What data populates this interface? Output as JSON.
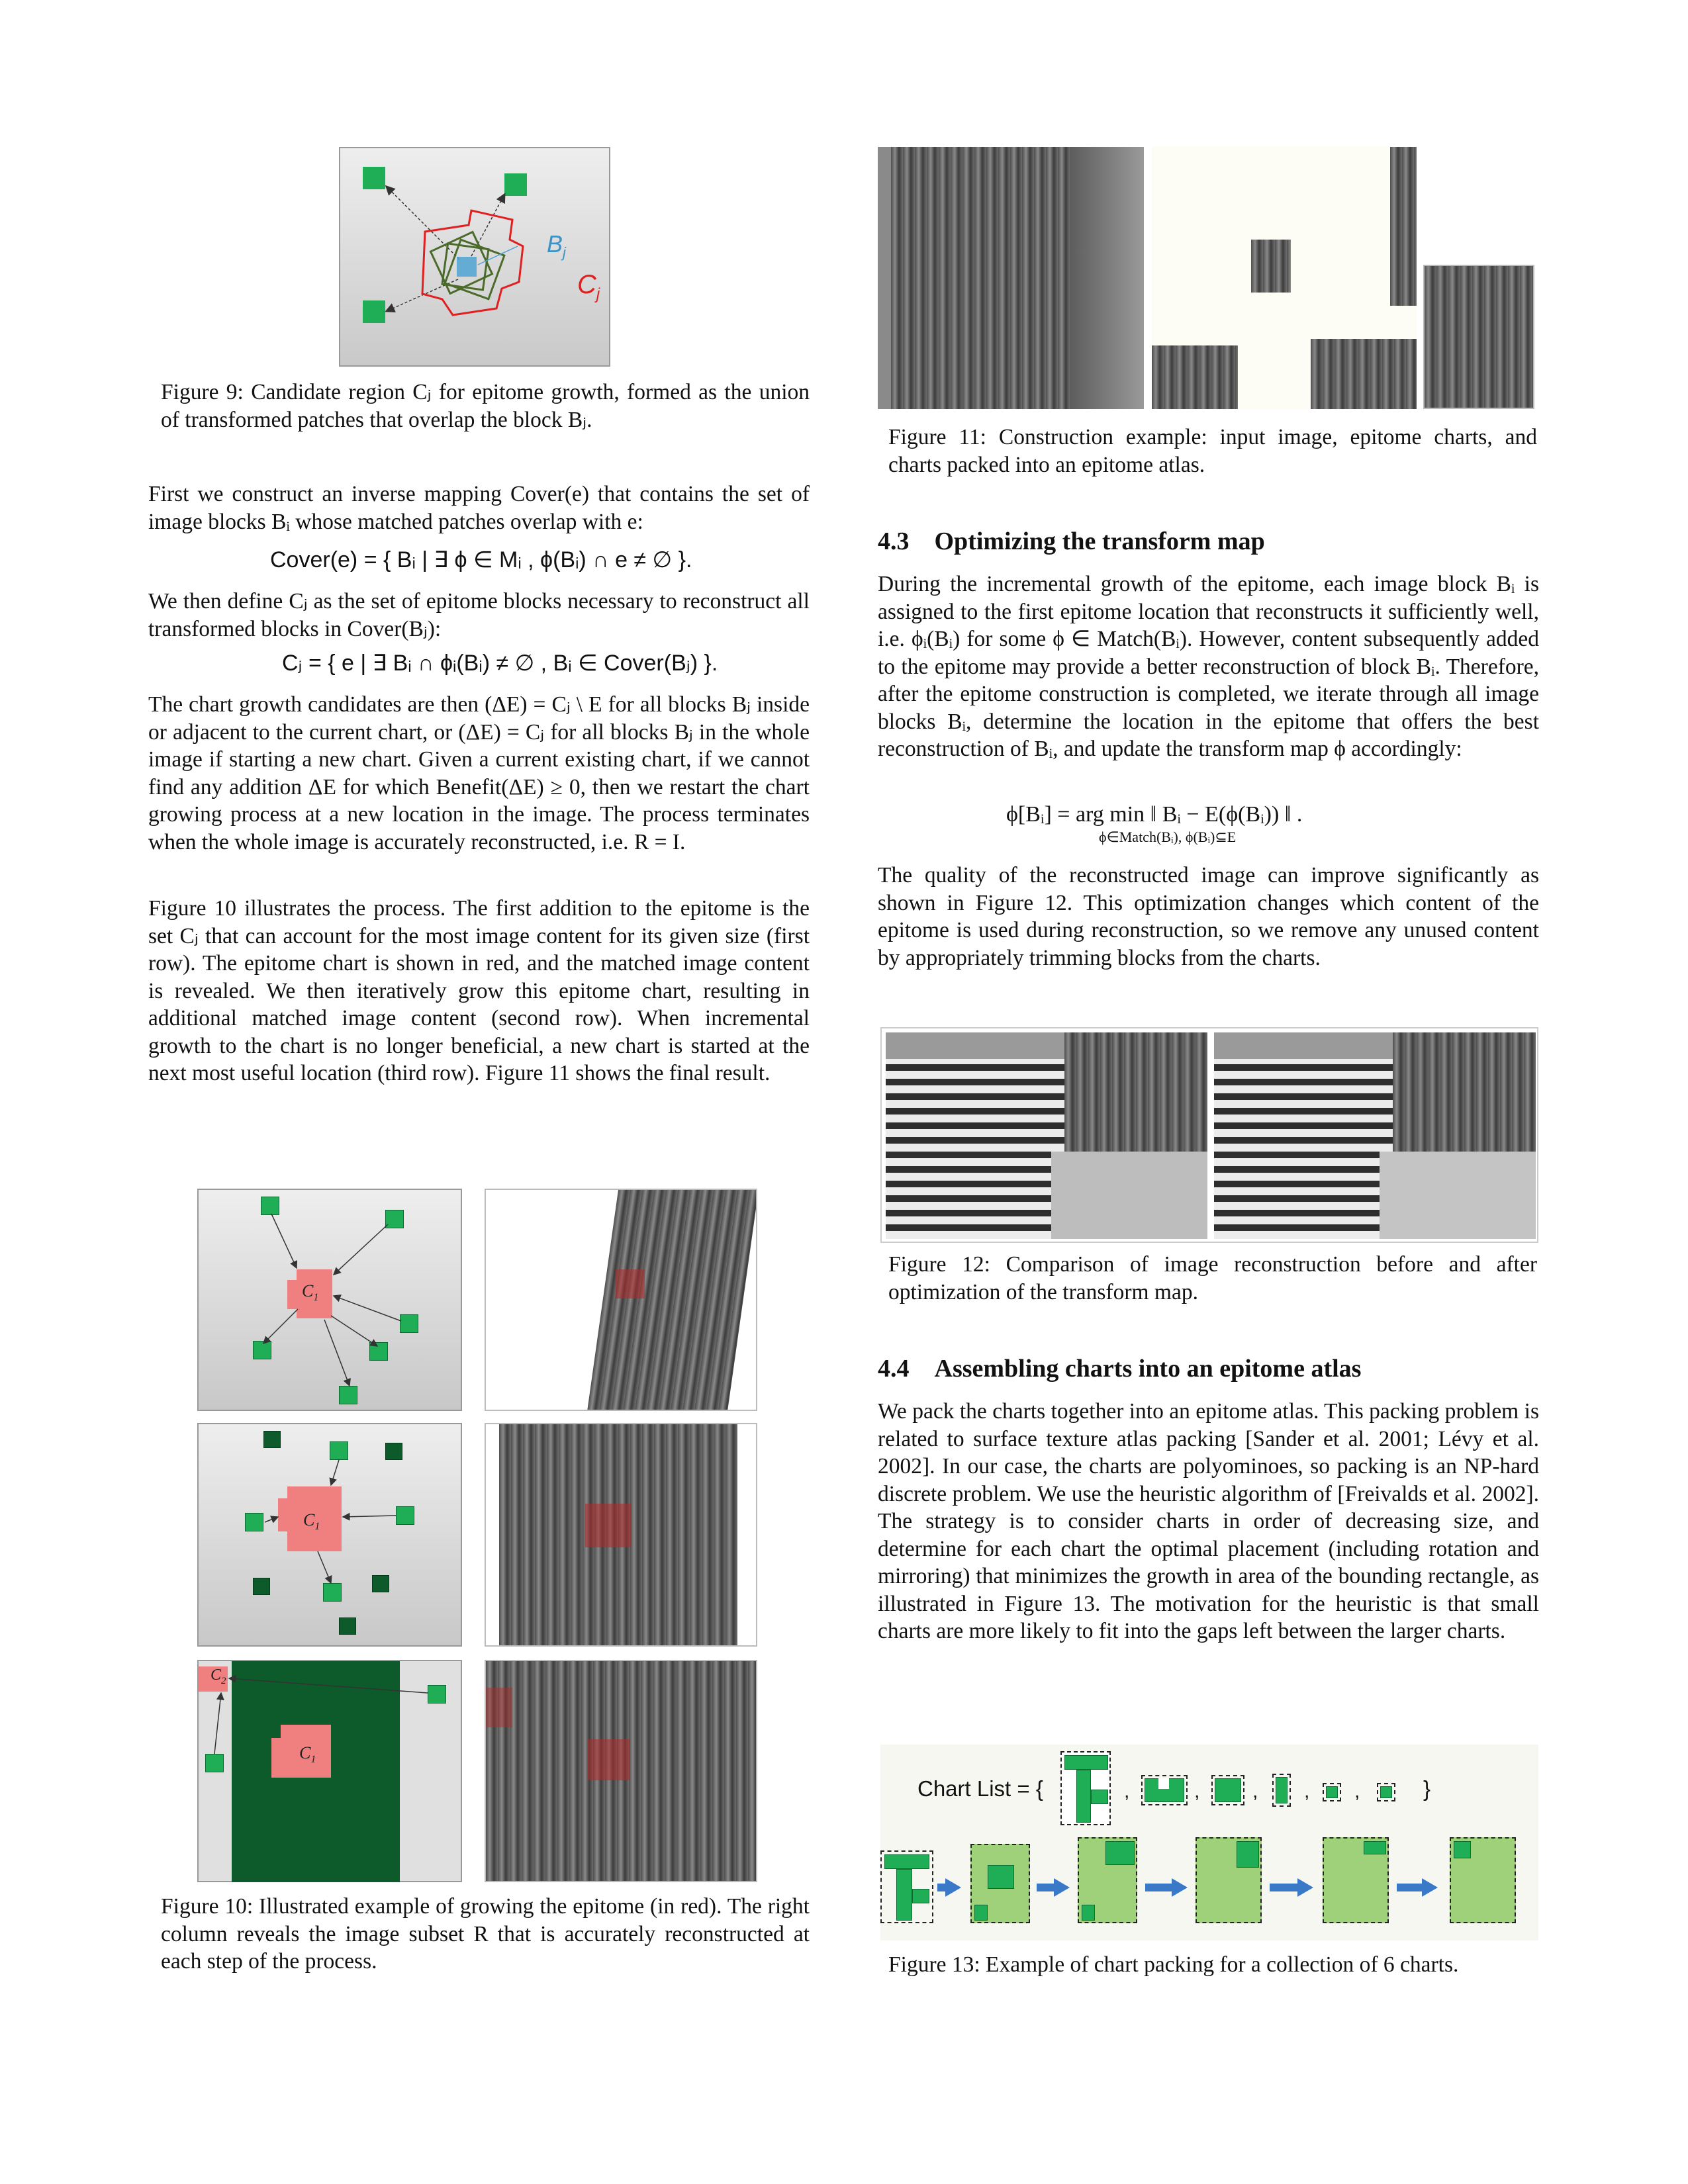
{
  "fig9": {
    "label_b": "B",
    "label_b_sub": "j",
    "label_c": "C",
    "label_c_sub": "j",
    "caption": "Figure 9: Candidate region Cⱼ for epitome growth, formed as the union of transformed patches that overlap the block Bⱼ."
  },
  "left_paragraphs": {
    "p1": "First we construct an inverse mapping Cover(e) that contains the set of image blocks Bᵢ whose matched patches overlap with e:",
    "eq1": "Cover(e) = { Bᵢ | ∃ ϕ ∈ Mᵢ , ϕ(Bᵢ) ∩ e ≠ ∅ }.",
    "p2": "We then define Cⱼ as the set of epitome blocks necessary to reconstruct all transformed blocks in Cover(Bⱼ):",
    "eq2": "Cⱼ = { e | ∃ Bᵢ ∩ ϕᵢ(Bᵢ) ≠ ∅ , Bᵢ ∈ Cover(Bⱼ) }.",
    "p3": "The chart growth candidates are then (ΔE) = Cⱼ \\ E for all blocks Bⱼ inside or adjacent to the current chart, or (ΔE) = Cⱼ for all blocks Bⱼ in the whole image if starting a new chart. Given a current existing chart, if we cannot find any addition ΔE for which Benefit(ΔE) ≥ 0, then we restart the chart growing process at a new location in the image. The process terminates when the whole image is accurately reconstructed, i.e. R = I.",
    "p4": "Figure 10 illustrates the process. The first addition to the epitome is the set Cⱼ that can account for the most image content for its given size (first row). The epitome chart is shown in red, and the matched image content is revealed. We then iteratively grow this epitome chart, resulting in additional matched image content (second row). When incremental growth to the chart is no longer beneficial, a new chart is started at the next most useful location (third row). Figure 11 shows the final result."
  },
  "fig10": {
    "c1": "C",
    "c1_sub": "1",
    "c2": "C",
    "c2_sub": "2",
    "caption": "Figure 10: Illustrated example of growing the epitome (in red). The right column reveals the image subset R that is accurately reconstructed at each step of the process."
  },
  "fig11": {
    "caption": "Figure 11: Construction example: input image, epitome charts, and charts packed into an epitome atlas."
  },
  "section43": {
    "heading": "4.3 Optimizing the transform map",
    "p1": "During the incremental growth of the epitome, each image block Bᵢ is assigned to the first epitome location that reconstructs it sufficiently well, i.e. ϕᵢ(Bᵢ) for some ϕ ∈ Match(Bᵢ). However, content subsequently added to the epitome may provide a better reconstruction of block Bᵢ. Therefore, after the epitome construction is completed, we iterate through all image blocks Bᵢ, determine the location in the epitome that offers the best reconstruction of Bᵢ, and update the transform map ϕ accordingly:",
    "eq": "ϕ[Bᵢ] = arg min ‖ Bᵢ − E(ϕ(Bᵢ)) ‖ .",
    "eq_sub": "ϕ∈Match(Bᵢ), ϕ(Bᵢ)⊆E",
    "p2": "The quality of the reconstructed image can improve significantly as shown in Figure 12. This optimization changes which content of the epitome is used during reconstruction, so we remove any unused content by appropriately trimming blocks from the charts."
  },
  "fig12": {
    "caption": "Figure 12: Comparison of image reconstruction before and after optimization of the transform map."
  },
  "section44": {
    "heading": "4.4 Assembling charts into an epitome atlas",
    "p1": "We pack the charts together into an epitome atlas. This packing problem is related to surface texture atlas packing [Sander et al. 2001; Lévy et al. 2002]. In our case, the charts are polyominoes, so packing is an NP-hard discrete problem. We use the heuristic algorithm of [Freivalds et al. 2002]. The strategy is to consider charts in order of decreasing size, and determine for each chart the optimal placement (including rotation and mirroring) that minimizes the growth in area of the bounding rectangle, as illustrated in Figure 13. The motivation for the heuristic is that small charts are more likely to fit into the gaps left between the larger charts."
  },
  "fig13": {
    "chart_list_label": "Chart List = {",
    "close_brace": "}",
    "comma": ",",
    "caption": "Figure 13: Example of chart packing for a collection of 6 charts."
  },
  "colors": {
    "epitome_red": "#f08080",
    "green": "#1fae55",
    "dark_green": "#0d5a2a",
    "arrow_blue": "#3a78c8"
  }
}
